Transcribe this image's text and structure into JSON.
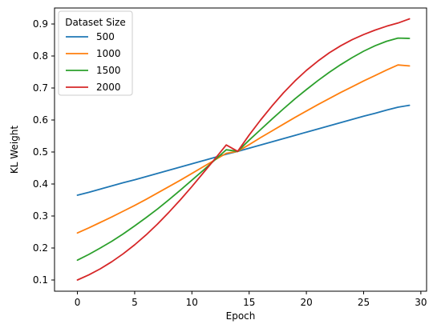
{
  "chart_data": {
    "type": "line",
    "title": "",
    "xlabel": "Epoch",
    "ylabel": "KL Weight",
    "xlim": [
      -2,
      30.5
    ],
    "ylim": [
      0.065,
      0.95
    ],
    "xticks": [
      0,
      5,
      10,
      15,
      20,
      25,
      30
    ],
    "yticks": [
      0.1,
      0.2,
      0.3,
      0.4,
      0.5,
      0.6,
      0.7,
      0.8,
      0.9
    ],
    "grid": false,
    "legend": {
      "title": "Dataset Size",
      "placement": "top-left"
    },
    "x": [
      0,
      1,
      2,
      3,
      4,
      5,
      6,
      7,
      8,
      9,
      10,
      11,
      12,
      13,
      14,
      15,
      16,
      17,
      18,
      19,
      20,
      21,
      22,
      23,
      24,
      25,
      26,
      27,
      28,
      29
    ],
    "series": [
      {
        "name": "500",
        "color": "#1f77b4",
        "values": [
          0.365,
          0.374,
          0.384,
          0.394,
          0.404,
          0.413,
          0.423,
          0.433,
          0.443,
          0.453,
          0.463,
          0.473,
          0.483,
          0.493,
          0.502,
          0.512,
          0.522,
          0.532,
          0.542,
          0.552,
          0.562,
          0.572,
          0.582,
          0.592,
          0.602,
          0.612,
          0.621,
          0.631,
          0.64,
          0.646
        ]
      },
      {
        "name": "1000",
        "color": "#ff7f0e",
        "values": [
          0.247,
          0.263,
          0.28,
          0.297,
          0.315,
          0.333,
          0.352,
          0.372,
          0.392,
          0.412,
          0.433,
          0.454,
          0.475,
          0.496,
          0.502,
          0.523,
          0.545,
          0.566,
          0.587,
          0.608,
          0.628,
          0.648,
          0.667,
          0.686,
          0.704,
          0.722,
          0.739,
          0.756,
          0.772,
          0.769
        ]
      },
      {
        "name": "1500",
        "color": "#2ca02c",
        "values": [
          0.162,
          0.18,
          0.2,
          0.221,
          0.244,
          0.269,
          0.295,
          0.322,
          0.351,
          0.381,
          0.412,
          0.443,
          0.475,
          0.507,
          0.502,
          0.537,
          0.57,
          0.603,
          0.635,
          0.666,
          0.695,
          0.723,
          0.749,
          0.773,
          0.795,
          0.815,
          0.832,
          0.846,
          0.856,
          0.855
        ]
      },
      {
        "name": "2000",
        "color": "#d62728",
        "values": [
          0.1,
          0.116,
          0.135,
          0.157,
          0.182,
          0.21,
          0.241,
          0.275,
          0.312,
          0.351,
          0.392,
          0.435,
          0.478,
          0.522,
          0.502,
          0.553,
          0.6,
          0.644,
          0.685,
          0.722,
          0.755,
          0.784,
          0.81,
          0.832,
          0.851,
          0.867,
          0.881,
          0.893,
          0.903,
          0.916
        ]
      }
    ]
  }
}
